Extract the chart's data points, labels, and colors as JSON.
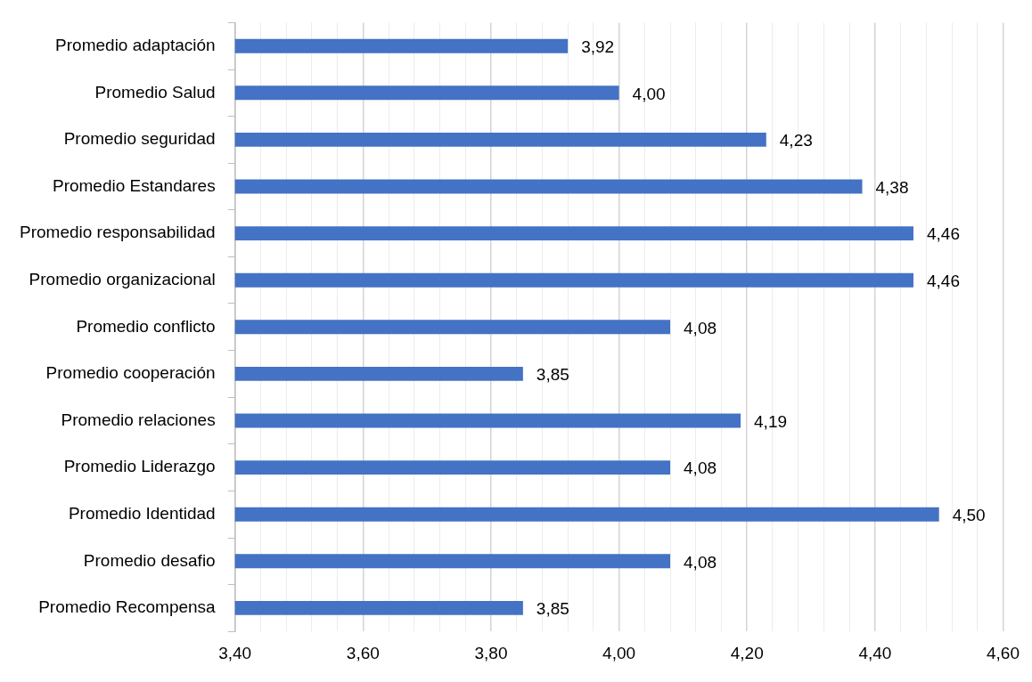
{
  "chart_data": {
    "type": "bar",
    "orientation": "horizontal",
    "categories": [
      "Promedio adaptación",
      "Promedio Salud",
      "Promedio seguridad",
      "Promedio Estandares",
      "Promedio responsabilidad",
      "Promedio organizacional",
      "Promedio conflicto",
      "Promedio cooperación",
      "Promedio relaciones",
      "Promedio Liderazgo",
      "Promedio Identidad",
      "Promedio desafio",
      "Promedio Recompensa"
    ],
    "values": [
      3.92,
      4.0,
      4.23,
      4.38,
      4.46,
      4.46,
      4.08,
      3.85,
      4.19,
      4.08,
      4.5,
      4.08,
      3.85
    ],
    "value_labels": [
      "3,92",
      "4,00",
      "4,23",
      "4,38",
      "4,46",
      "4,46",
      "4,08",
      "3,85",
      "4,19",
      "4,08",
      "4,50",
      "4,08",
      "3,85"
    ],
    "color": "#4472c4",
    "xlim": [
      3.4,
      4.6
    ],
    "xticks": [
      {
        "value": 3.4,
        "label": "3,40"
      },
      {
        "value": 3.44,
        "label": null
      },
      {
        "value": 3.48,
        "label": null
      },
      {
        "value": 3.52,
        "label": null
      },
      {
        "value": 3.56,
        "label": null
      },
      {
        "value": 3.6,
        "label": "3,60"
      },
      {
        "value": 3.64,
        "label": null
      },
      {
        "value": 3.68,
        "label": null
      },
      {
        "value": 3.72,
        "label": null
      },
      {
        "value": 3.76,
        "label": null
      },
      {
        "value": 3.8,
        "label": "3,80"
      },
      {
        "value": 3.84,
        "label": null
      },
      {
        "value": 3.88,
        "label": null
      },
      {
        "value": 3.92,
        "label": null
      },
      {
        "value": 3.96,
        "label": null
      },
      {
        "value": 4.0,
        "label": "4,00"
      },
      {
        "value": 4.04,
        "label": null
      },
      {
        "value": 4.08,
        "label": null
      },
      {
        "value": 4.12,
        "label": null
      },
      {
        "value": 4.16,
        "label": null
      },
      {
        "value": 4.2,
        "label": "4,20"
      },
      {
        "value": 4.24,
        "label": null
      },
      {
        "value": 4.28,
        "label": null
      },
      {
        "value": 4.32,
        "label": null
      },
      {
        "value": 4.36,
        "label": null
      },
      {
        "value": 4.4,
        "label": "4,40"
      },
      {
        "value": 4.44,
        "label": null
      },
      {
        "value": 4.48,
        "label": null
      },
      {
        "value": 4.52,
        "label": null
      },
      {
        "value": 4.56,
        "label": null
      },
      {
        "value": 4.6,
        "label": "4,60"
      }
    ],
    "grid": "x",
    "legend": false
  }
}
